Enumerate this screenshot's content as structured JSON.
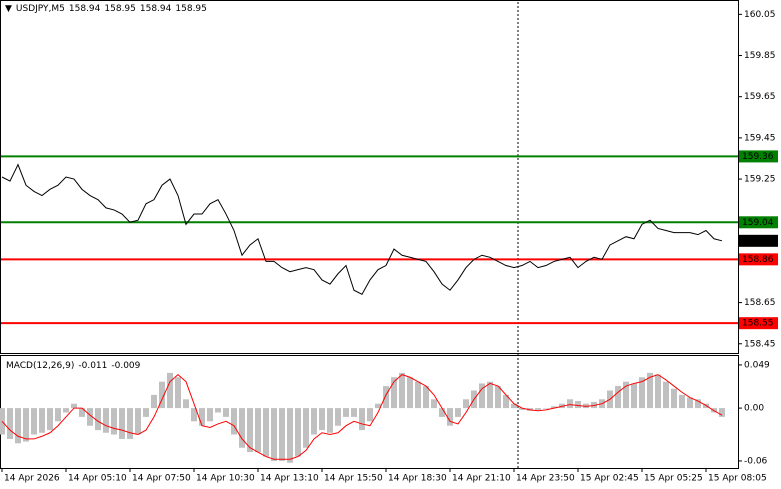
{
  "chart_data": [
    {
      "type": "line",
      "title": "USDJPY,M5",
      "ohlc": [
        158.94,
        158.95,
        158.94,
        158.95
      ],
      "ylim": [
        158.41,
        160.11
      ],
      "yticks": [
        158.45,
        158.65,
        159.25,
        159.45,
        159.65,
        159.85,
        160.05
      ],
      "series": [
        {
          "color": "#000000",
          "values": [
            159.26,
            159.24,
            159.32,
            159.22,
            159.19,
            159.17,
            159.2,
            159.22,
            159.26,
            159.25,
            159.2,
            159.17,
            159.15,
            159.11,
            159.1,
            159.08,
            159.04,
            159.05,
            159.13,
            159.15,
            159.22,
            159.25,
            159.17,
            159.03,
            159.08,
            159.08,
            159.13,
            159.15,
            159.08,
            159.0,
            158.88,
            158.93,
            158.96,
            158.85,
            158.85,
            158.82,
            158.8,
            158.81,
            158.82,
            158.81,
            158.76,
            158.74,
            158.79,
            158.83,
            158.71,
            158.69,
            158.76,
            158.81,
            158.83,
            158.91,
            158.88,
            158.87,
            158.86,
            158.85,
            158.8,
            158.74,
            158.71,
            158.76,
            158.82,
            158.86,
            158.88,
            158.87,
            158.85,
            158.83,
            158.82,
            158.83,
            158.85,
            158.82,
            158.83,
            158.85,
            158.86,
            158.87,
            158.82,
            158.85,
            158.87,
            158.86,
            158.93,
            158.95,
            158.97,
            158.96,
            159.03,
            159.05,
            159.01,
            159.0,
            158.99,
            158.99,
            158.99,
            158.98,
            159.0,
            158.96,
            158.95
          ]
        }
      ],
      "levels": [
        {
          "value": 159.36,
          "color": "#008000"
        },
        {
          "value": 159.04,
          "color": "#008000"
        },
        {
          "value": 158.86,
          "color": "#ff0000"
        },
        {
          "value": 158.55,
          "color": "#ff0000"
        }
      ]
    },
    {
      "type": "macd",
      "title": "MACD(12,26,9)",
      "indicator_values": [
        -0.011,
        -0.009
      ],
      "ylim": [
        -0.068,
        0.058
      ],
      "yticks": [
        0.049,
        {
          "value": 0,
          "label": "0.00"
        },
        -0.06
      ],
      "categories": [
        "14 Apr 2026",
        null,
        null,
        null,
        null,
        null,
        null,
        null,
        "14 Apr 05:10",
        null,
        null,
        null,
        null,
        null,
        null,
        null,
        "14 Apr 07:50",
        null,
        null,
        null,
        null,
        null,
        null,
        null,
        "14 Apr 10:30",
        null,
        null,
        null,
        null,
        null,
        null,
        null,
        "14 Apr 13:10",
        null,
        null,
        null,
        null,
        null,
        null,
        null,
        "14 Apr 15:50",
        null,
        null,
        null,
        null,
        null,
        null,
        null,
        "14 Apr 18:30",
        null,
        null,
        null,
        null,
        null,
        null,
        null,
        "14 Apr 21:10",
        null,
        null,
        null,
        null,
        null,
        null,
        null,
        "14 Apr 23:50",
        null,
        null,
        null,
        null,
        null,
        null,
        null,
        "15 Apr 02:45",
        null,
        null,
        null,
        null,
        null,
        null,
        null,
        "15 Apr 05:25",
        null,
        null,
        null,
        null,
        null,
        null,
        null,
        "15 Apr 08:05",
        null,
        null
      ],
      "series": [
        {
          "color": "#c0c0c0",
          "values": [
            -0.03,
            -0.035,
            -0.04,
            -0.038,
            -0.03,
            -0.028,
            -0.025,
            -0.015,
            -0.005,
            0.005,
            -0.01,
            -0.02,
            -0.025,
            -0.028,
            -0.03,
            -0.035,
            -0.035,
            -0.03,
            -0.01,
            0.015,
            0.03,
            0.04,
            0.035,
            0.01,
            -0.015,
            -0.02,
            -0.015,
            -0.005,
            -0.01,
            -0.03,
            -0.045,
            -0.05,
            -0.05,
            -0.055,
            -0.06,
            -0.06,
            -0.062,
            -0.055,
            -0.045,
            -0.03,
            -0.025,
            -0.028,
            -0.02,
            -0.01,
            -0.01,
            -0.025,
            -0.015,
            0.005,
            0.025,
            0.035,
            0.04,
            0.035,
            0.03,
            0.025,
            0.01,
            -0.01,
            -0.02,
            -0.01,
            0.01,
            0.02,
            0.028,
            0.03,
            0.025,
            0.015,
            0.005,
            -0.002,
            -0.003,
            -0.002,
            0.0,
            0.002,
            0.005,
            0.01,
            0.008,
            0.005,
            0.007,
            0.01,
            0.02,
            0.025,
            0.03,
            0.028,
            0.035,
            0.04,
            0.038,
            0.03,
            0.022,
            0.015,
            0.012,
            0.01,
            0.005,
            -0.005,
            -0.01
          ]
        },
        {
          "color": "#ff0000",
          "values": [
            -0.015,
            -0.025,
            -0.032,
            -0.035,
            -0.035,
            -0.032,
            -0.028,
            -0.02,
            -0.01,
            0.0,
            0.0,
            -0.008,
            -0.015,
            -0.02,
            -0.023,
            -0.025,
            -0.028,
            -0.03,
            -0.025,
            -0.01,
            0.01,
            0.03,
            0.038,
            0.03,
            0.005,
            -0.02,
            -0.022,
            -0.018,
            -0.015,
            -0.02,
            -0.035,
            -0.045,
            -0.05,
            -0.055,
            -0.058,
            -0.058,
            -0.058,
            -0.055,
            -0.048,
            -0.035,
            -0.028,
            -0.03,
            -0.028,
            -0.02,
            -0.015,
            -0.018,
            -0.02,
            -0.005,
            0.015,
            0.03,
            0.038,
            0.035,
            0.03,
            0.025,
            0.015,
            0.0,
            -0.015,
            -0.018,
            -0.005,
            0.01,
            0.022,
            0.028,
            0.025,
            0.015,
            0.005,
            0.0,
            -0.002,
            -0.003,
            -0.002,
            0.0,
            0.002,
            0.004,
            0.003,
            0.002,
            0.003,
            0.005,
            0.01,
            0.018,
            0.025,
            0.028,
            0.03,
            0.035,
            0.038,
            0.032,
            0.025,
            0.018,
            0.012,
            0.008,
            0.003,
            -0.003,
            -0.008
          ]
        }
      ]
    }
  ]
}
